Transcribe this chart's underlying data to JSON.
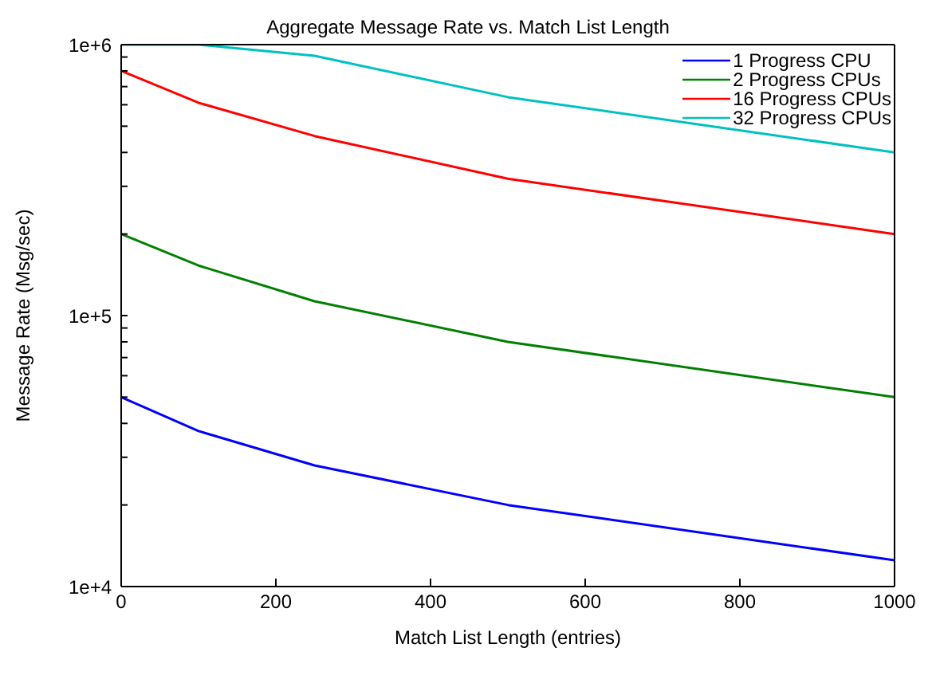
{
  "chart_data": {
    "type": "line",
    "title": "Aggregate Message Rate vs. Match List Length",
    "xlabel": "Match List Length (entries)",
    "ylabel": "Message Rate (Msg/sec)",
    "x": [
      0,
      100,
      250,
      500,
      1000
    ],
    "series": [
      {
        "name": "1 Progress CPU",
        "color": "#0000ff",
        "values": [
          50000,
          37500,
          28000,
          20000,
          12500
        ]
      },
      {
        "name": "2 Progress CPUs",
        "color": "#008000",
        "values": [
          200000,
          153000,
          113000,
          80000,
          50000
        ]
      },
      {
        "name": "16 Progress CPUs",
        "color": "#ff0000",
        "values": [
          800000,
          610000,
          460000,
          320000,
          200000
        ]
      },
      {
        "name": "32 Progress CPUs",
        "color": "#00c0c0",
        "values": [
          1000000,
          1000000,
          910000,
          640000,
          400000
        ]
      }
    ],
    "log": "y",
    "xlim": [
      0,
      1000
    ],
    "xticks": [
      0,
      200,
      400,
      600,
      800,
      1000
    ],
    "ylim": [
      10000,
      1000000
    ],
    "yticks": [
      {
        "value": 10000,
        "label": "1e+4"
      },
      {
        "value": 20000,
        "label": null
      },
      {
        "value": 30000,
        "label": null
      },
      {
        "value": 40000,
        "label": null
      },
      {
        "value": 50000,
        "label": null
      },
      {
        "value": 60000,
        "label": null
      },
      {
        "value": 70000,
        "label": null
      },
      {
        "value": 80000,
        "label": null
      },
      {
        "value": 90000,
        "label": null
      },
      {
        "value": 100000,
        "label": "1e+5"
      },
      {
        "value": 200000,
        "label": null
      },
      {
        "value": 300000,
        "label": null
      },
      {
        "value": 400000,
        "label": null
      },
      {
        "value": 500000,
        "label": null
      },
      {
        "value": 600000,
        "label": null
      },
      {
        "value": 700000,
        "label": null
      },
      {
        "value": 800000,
        "label": null
      },
      {
        "value": 900000,
        "label": null
      },
      {
        "value": 1000000,
        "label": "1e+6"
      }
    ],
    "grid": false,
    "legend": "top right",
    "marker": "none",
    "line_style": "solid"
  }
}
